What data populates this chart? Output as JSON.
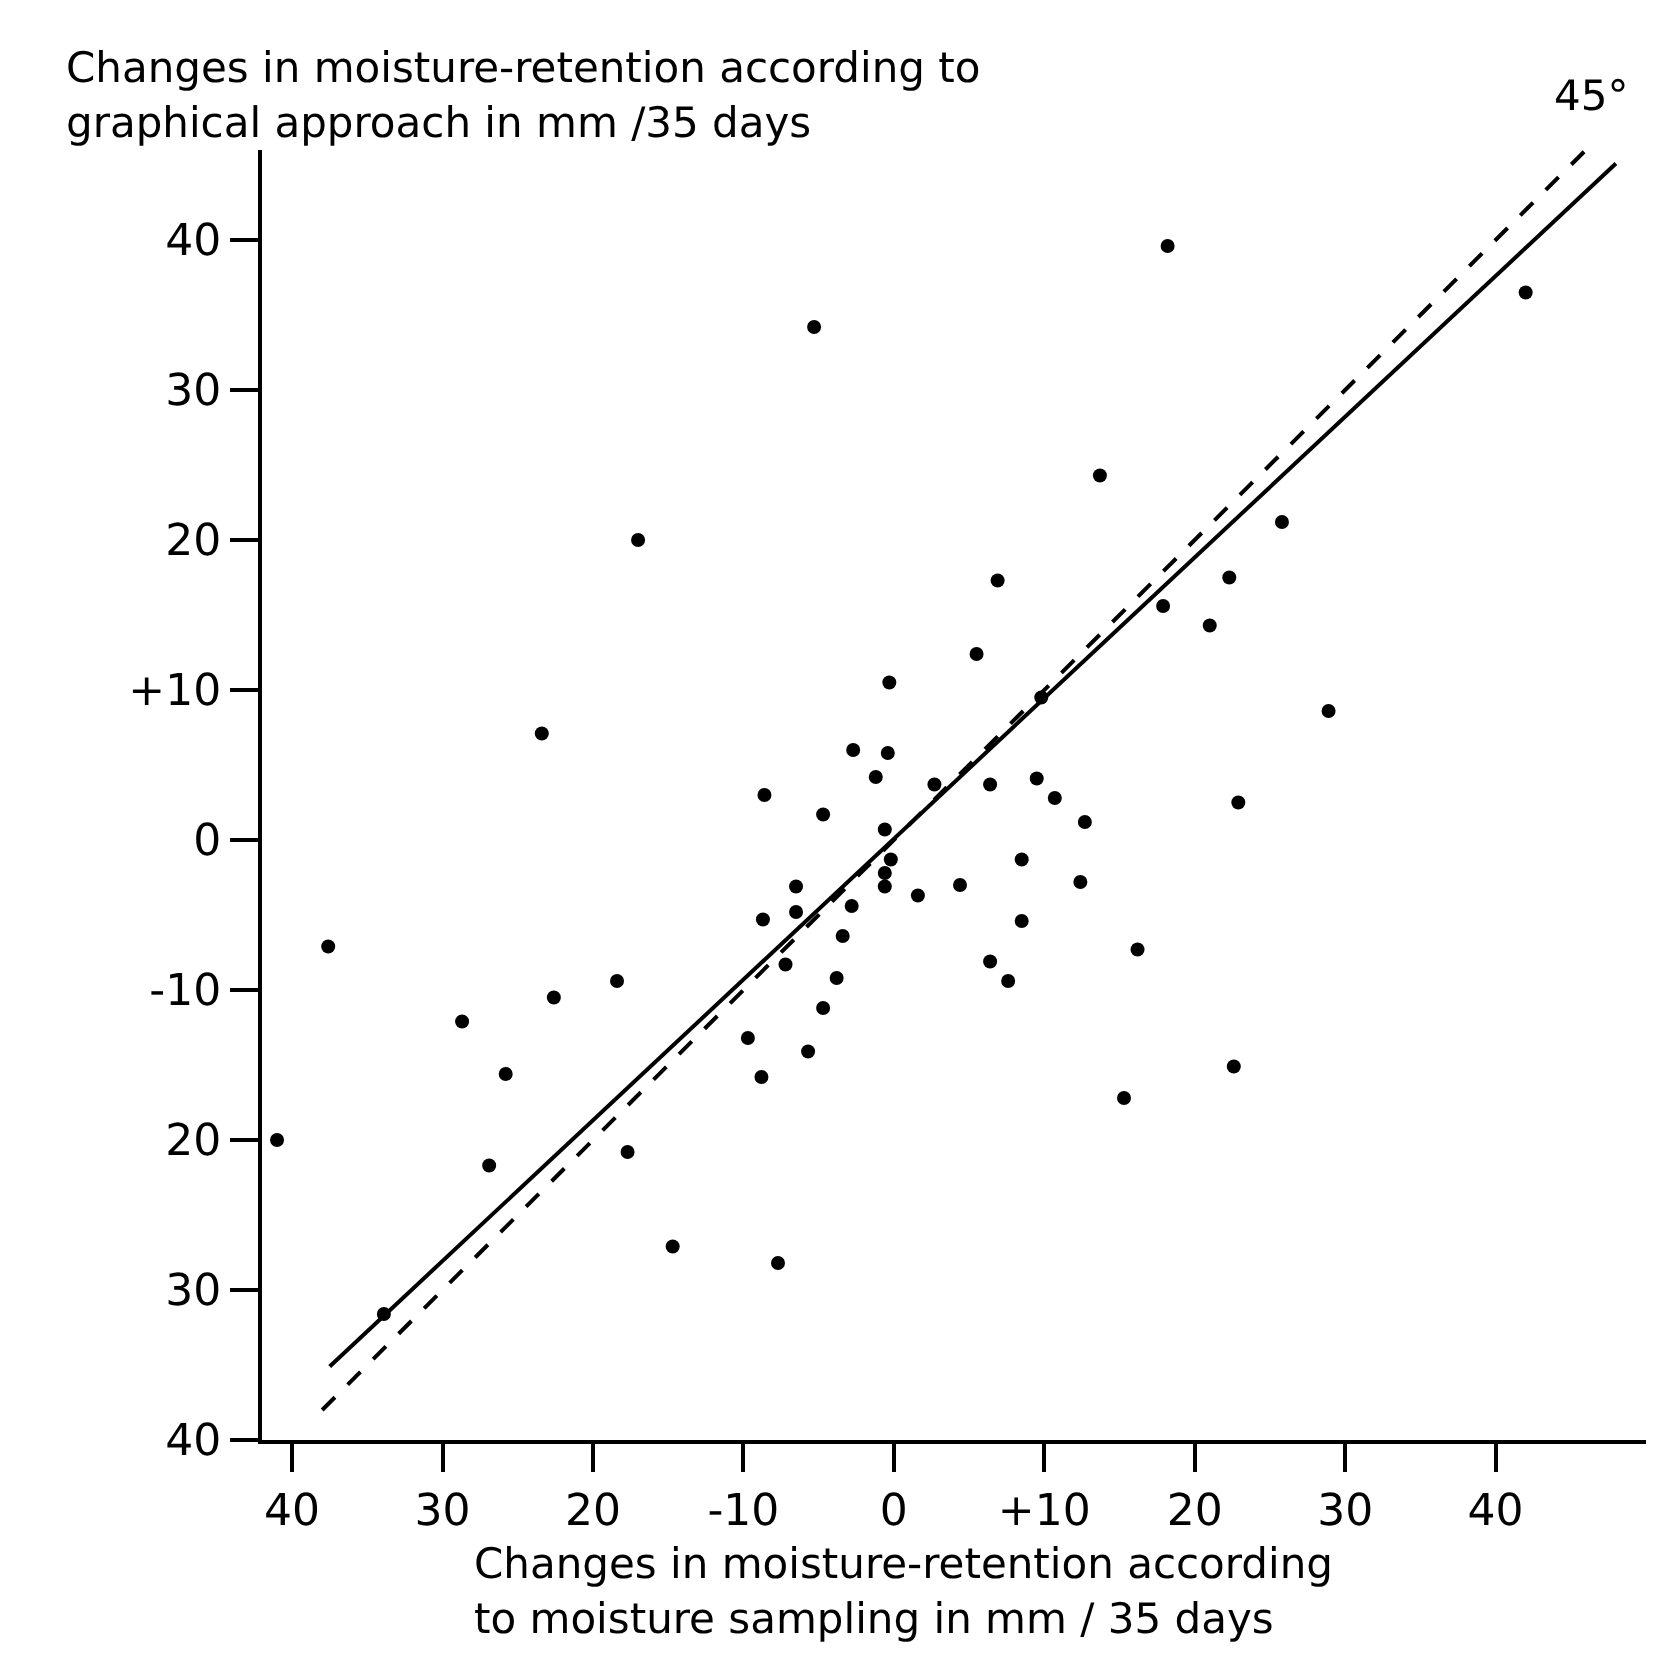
{
  "chart_data": {
    "type": "scatter",
    "ylabel": "Changes in moisture-retention according to\ngraphical approach in mm /35 days",
    "xlabel": "Changes in moisture-retention according\nto moisture sampling in mm / 35 days",
    "annotations": [
      "45°"
    ],
    "xlim": [
      -42,
      50
    ],
    "ylim": [
      -40,
      46
    ],
    "xticks": [
      {
        "value": -40,
        "label": "40"
      },
      {
        "value": -30,
        "label": "30"
      },
      {
        "value": -20,
        "label": "20"
      },
      -10,
      0,
      {
        "value": 10,
        "label": "+10"
      },
      20,
      30,
      40
    ],
    "yticks": [
      {
        "value": -40,
        "label": "40"
      },
      {
        "value": -30,
        "label": "30"
      },
      {
        "value": -20,
        "label": "20"
      },
      -10,
      0,
      {
        "value": 10,
        "label": "+10"
      },
      20,
      30,
      40
    ],
    "marker": "circle",
    "series": [
      {
        "color": "#000000",
        "x": [
          -5.3,
          -17.0,
          -0.3,
          -23.4,
          -2.7,
          -0.4,
          -1.2,
          2.7,
          -8.6,
          -4.7,
          -0.6,
          18.2,
          42.0,
          13.7,
          25.8,
          6.9,
          22.3,
          17.9,
          21.0,
          5.5,
          28.9,
          9.8,
          6.4,
          9.5,
          10.7,
          22.9,
          12.7,
          8.5,
          -0.2,
          -0.6,
          -0.6,
          -6.5,
          1.6,
          4.4,
          -6.5,
          -8.7,
          -2.8,
          -3.4,
          -7.2,
          -3.8,
          -4.7,
          -37.6,
          -18.4,
          -22.6,
          -28.7,
          -9.7,
          -5.7,
          -8.8,
          -25.8,
          -41.0,
          -17.7,
          -26.9,
          -14.7,
          -7.7,
          -33.9,
          12.4,
          8.5,
          16.2,
          6.4,
          7.6,
          22.6,
          15.3
        ],
        "values": [
          34.2,
          20.0,
          10.5,
          7.1,
          6.0,
          5.8,
          4.2,
          3.7,
          3.0,
          1.7,
          0.7,
          39.6,
          36.5,
          24.3,
          21.2,
          17.3,
          17.5,
          15.6,
          14.3,
          12.4,
          8.6,
          9.5,
          3.7,
          4.1,
          2.8,
          2.5,
          1.2,
          -1.3,
          -1.3,
          -2.2,
          -3.1,
          -3.1,
          -3.7,
          -3.0,
          -4.8,
          -5.3,
          -4.4,
          -6.4,
          -8.3,
          -9.2,
          -11.2,
          -7.1,
          -9.4,
          -10.5,
          -12.1,
          -13.2,
          -14.1,
          -15.8,
          -15.6,
          -20.0,
          -20.8,
          -21.7,
          -27.1,
          -28.2,
          -31.6,
          -2.8,
          -5.4,
          -7.3,
          -8.1,
          -9.4,
          -15.1,
          -17.2
        ]
      },
      {
        "type": "line",
        "color": "#000000",
        "line_style": "solid",
        "marker": "none",
        "x": [
          -37.5,
          48
        ],
        "values": [
          -35.1,
          45.1
        ]
      },
      {
        "type": "line",
        "color": "#000000",
        "line_style": "dashed",
        "marker": "none",
        "x": [
          -38,
          46
        ],
        "values": [
          -38,
          46
        ]
      }
    ]
  }
}
